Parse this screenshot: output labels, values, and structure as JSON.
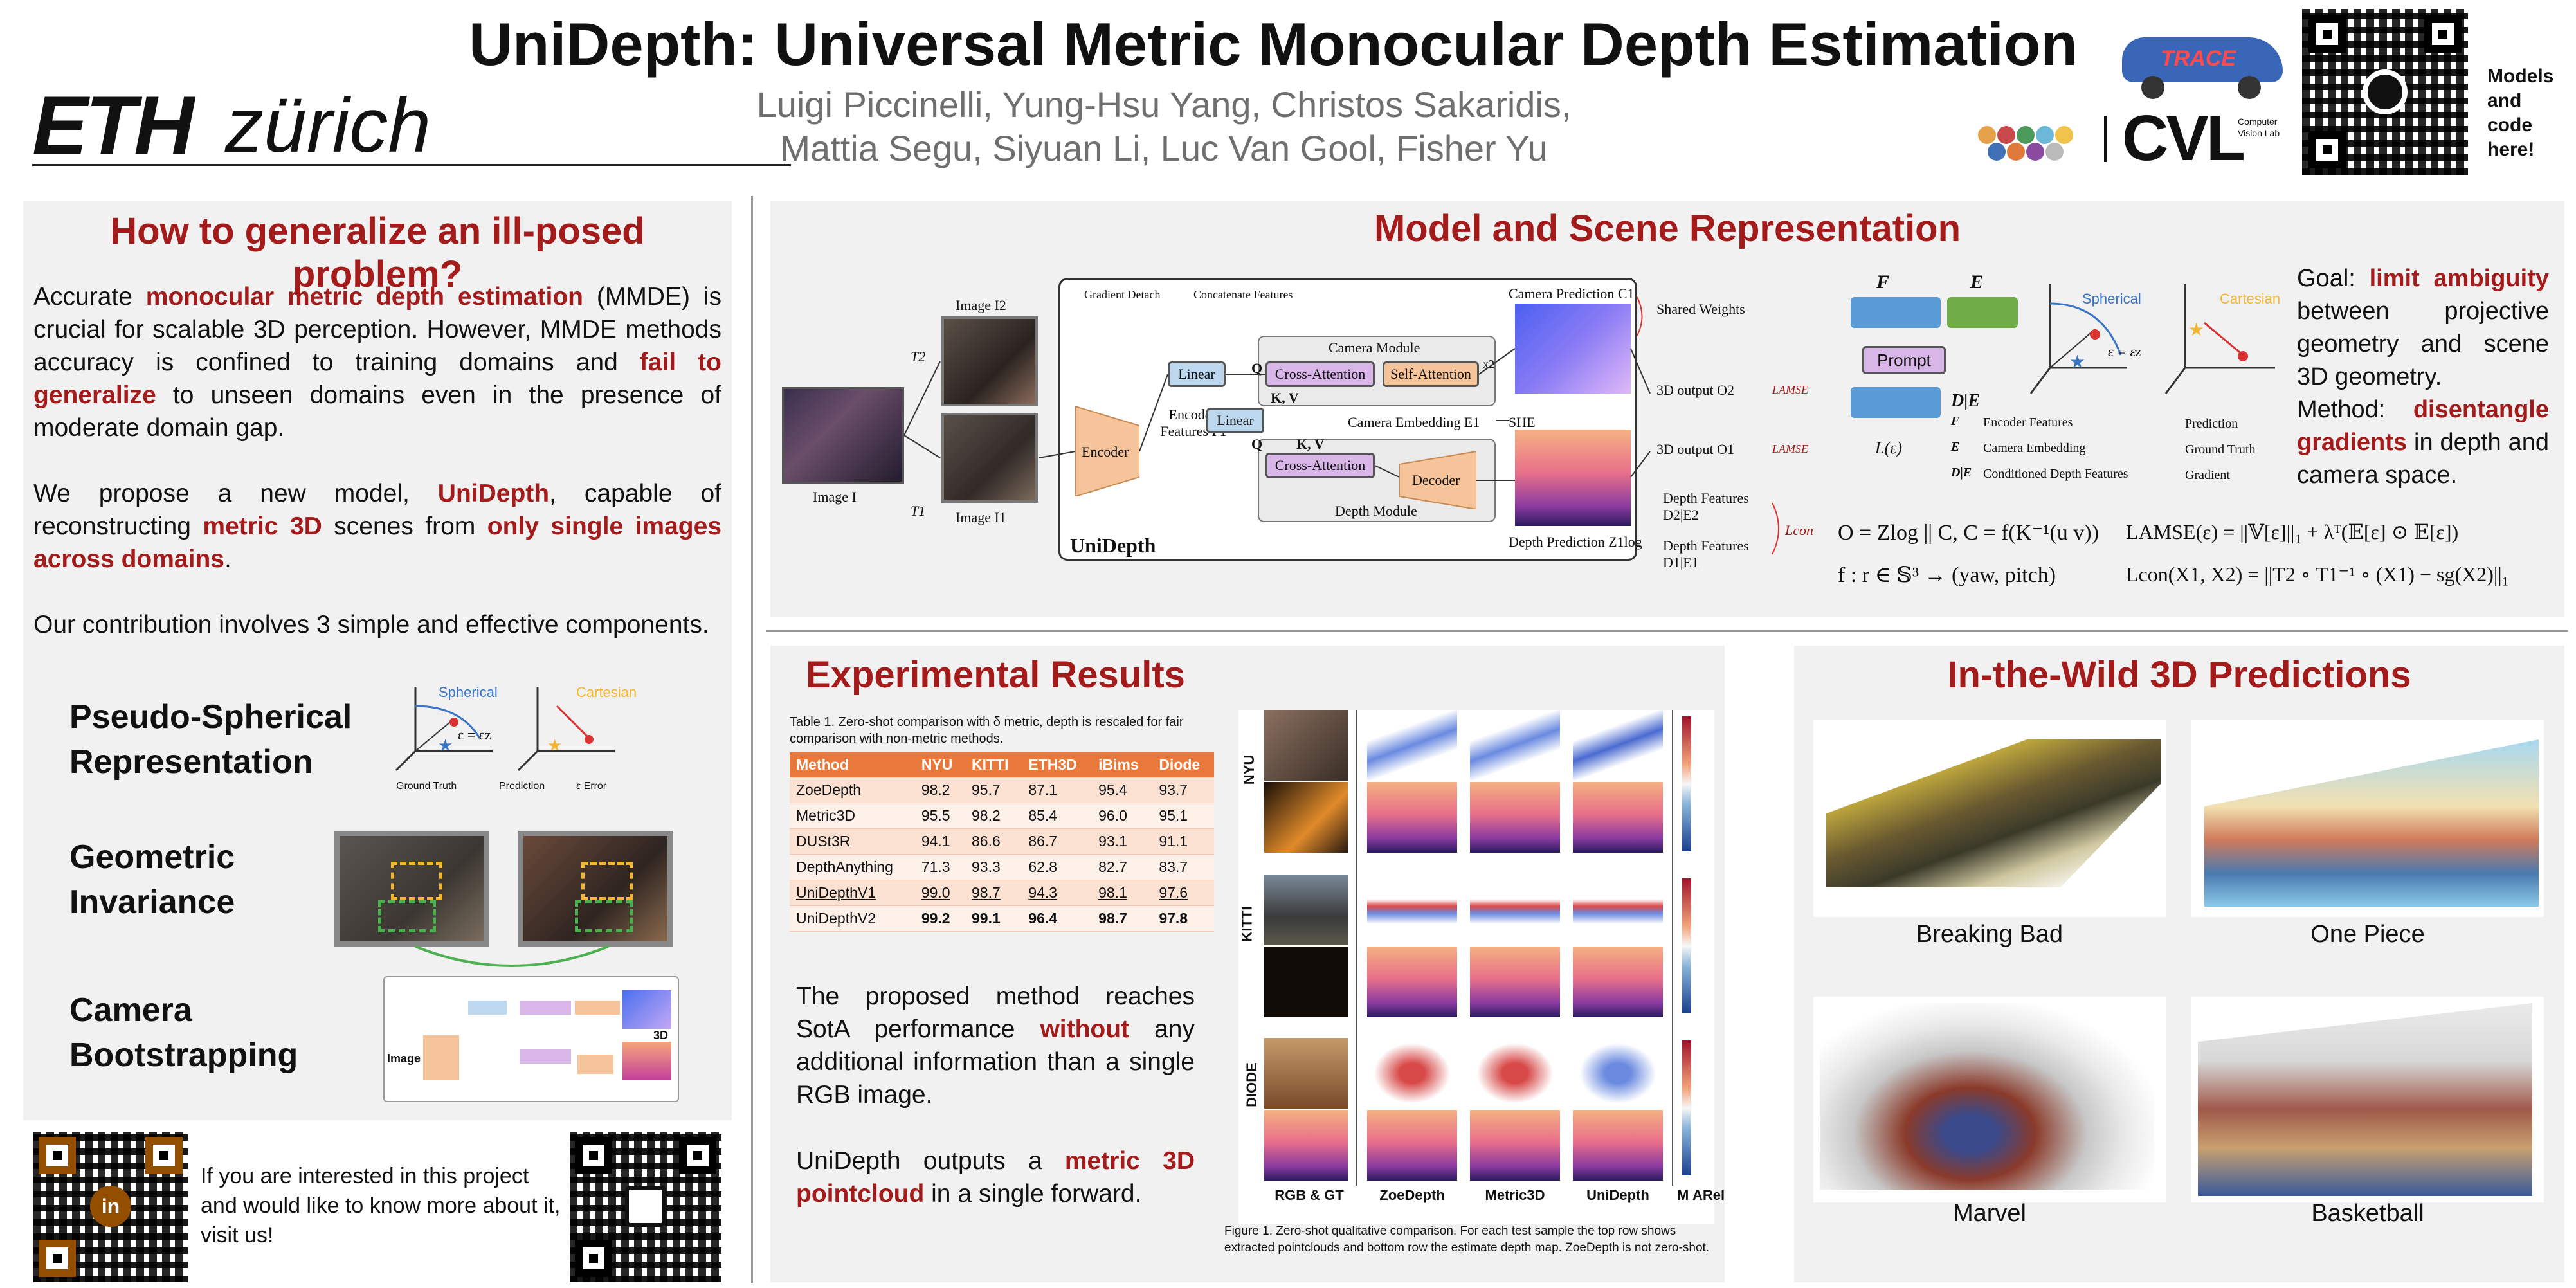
{
  "header": {
    "logo_left": "ETH zürich",
    "title": "UniDepth: Universal Metric Monocular Depth Estimation",
    "authors_line1": "Luigi Piccinelli, Yung-Hsu Yang, Christos Sakaridis,",
    "authors_line2": "Mattia Segu, Siyuan Li, Luc Van Gool, Fisher Yu",
    "trace_logo": "TRACE",
    "cvl_logo": "CVL",
    "cvl_sub": "Computer Vision Lab",
    "models_code": "Models and code here!"
  },
  "left": {
    "title": "How to generalize an ill-posed problem?",
    "p1": [
      "Accurate ",
      "monocular metric depth estimation",
      " (MMDE) is crucial for scalable 3D perception. However, MMDE methods accuracy is confined to training domains and ",
      "fail to generalize",
      " to unseen domains even in the presence of moderate domain gap."
    ],
    "p2": [
      "We propose a new model, ",
      "UniDepth",
      ", capable of reconstructing ",
      "metric 3D",
      " scenes from ",
      "only single images across domains",
      "."
    ],
    "p3": "Our contribution involves 3 simple and effective components.",
    "components": [
      "Pseudo-Spherical Representation",
      "Geometric Invariance",
      "Camera Bootstrapping"
    ],
    "sph_labels": {
      "spherical": "Spherical",
      "cartesian": "Cartesian",
      "eq": "ε = εz",
      "legend": [
        "Ground Truth",
        "Prediction",
        "ε  Error"
      ]
    },
    "footer_text": "If you are interested in this project and would like to know more about it, visit us!"
  },
  "model": {
    "title": "Model and Scene Representation",
    "diagram": {
      "legend_detach": "Gradient Detach",
      "legend_concat": "Concatenate Features",
      "image": "Image I",
      "image2": "Image I2",
      "image1": "Image I1",
      "t2": "T2",
      "t1": "T1",
      "encoder": "Encoder",
      "linear": "Linear",
      "q": "Q",
      "kv": "K, V",
      "encoded": "Encoded Features F1",
      "camera_module": "Camera Module",
      "cross_att": "Cross-Attention",
      "self_att": "Self-Attention",
      "x2": "x2",
      "camera_pred": "Camera Prediction C1",
      "shared": "Shared Weights",
      "cam_emb": "Camera Embedding E1",
      "she": "SHE",
      "decoder": "Decoder",
      "depth_module": "Depth Module",
      "depth_pred": "Depth Prediction Z1log",
      "unidepth": "UniDepth",
      "out2": "3D output O2",
      "out1": "3D output O1",
      "lamse": "LAMSE",
      "df2": "Depth Features D2|E2",
      "df1": "Depth Features D1|E1",
      "lcon": "Lcon"
    },
    "scene": {
      "F": "F",
      "E": "E",
      "prompt": "Prompt",
      "DE": "D|E",
      "L": "L(ε)",
      "legend": [
        "Encoder Features",
        "Camera Embedding",
        "Conditioned Depth Features"
      ],
      "legend_keys": [
        "F",
        "E",
        "D|E"
      ],
      "legend2": [
        "Prediction",
        "Ground Truth",
        "Gradient"
      ],
      "spherical": "Spherical",
      "cartesian": "Cartesian",
      "eq": "ε = εz"
    },
    "goal_lead": "Goal: ",
    "goal_red": "limit ambiguity",
    "goal_rest": " between projective geometry and scene 3D geometry.",
    "method_lead": "Method: ",
    "method_red": "disentangle gradients",
    "method_rest": " in depth and camera space.",
    "eq1": "O = Zlog || C, C = f(K⁻¹(u v))",
    "eq2": "f : r ∈ 𝕊³ → (yaw, pitch)",
    "eq3": "LAMSE(ε) = ||𝕍[ε]||₁ + λᵀ(𝔼[ε] ⊙ 𝔼[ε])",
    "eq4": "Lcon(X1, X2) = ||T2 ∘ T1⁻¹ ∘ (X1) − sg(X2)||₁"
  },
  "results": {
    "title": "Experimental Results",
    "table_caption": "Table 1. Zero-shot comparison with δ metric, depth is rescaled for fair comparison with non-metric methods.",
    "columns": [
      "Method",
      "NYU",
      "KITTI",
      "ETH3D",
      "iBims",
      "Diode"
    ],
    "rows": [
      [
        "ZoeDepth",
        "98.2",
        "95.7",
        "87.1",
        "95.4",
        "93.7"
      ],
      [
        "Metric3D",
        "95.5",
        "98.2",
        "85.4",
        "96.0",
        "95.1"
      ],
      [
        "DUSt3R",
        "94.1",
        "86.6",
        "86.7",
        "93.1",
        "91.1"
      ],
      [
        "DepthAnything",
        "71.3",
        "93.3",
        "62.8",
        "82.7",
        "83.7"
      ],
      [
        "UniDepthV1",
        "99.0",
        "98.7",
        "94.3",
        "98.1",
        "97.6"
      ],
      [
        "UniDepthV2",
        "99.2",
        "99.1",
        "96.4",
        "98.7",
        "97.8"
      ]
    ],
    "text1_a": "The proposed method reaches SotA performance ",
    "text1_red": "without",
    "text1_b": " any additional information than a single RGB image.",
    "text2_a": "UniDepth outputs a ",
    "text2_red": "metric 3D pointcloud",
    "text2_b": " in a single forward.",
    "row_labels": [
      "NYU",
      "KITTI",
      "DIODE"
    ],
    "col_labels": [
      "RGB & GT",
      "ZoeDepth",
      "Metric3D",
      "UniDepth",
      "M",
      "ARel"
    ],
    "figure_caption": "Figure 1. Zero-shot qualitative comparison. For each test sample the top row shows extracted pointclouds and bottom row the estimate depth map. ZoeDepth is not zero-shot."
  },
  "wild": {
    "title": "In-the-Wild 3D Predictions",
    "items": [
      "Breaking Bad",
      "One Piece",
      "Marvel",
      "Basketball"
    ]
  },
  "colors": {
    "accent_red": "#a31b1b",
    "panel_bg": "#f1f1f1",
    "table_orange": "#e9793b",
    "box_blue": "#5b9bd5",
    "box_purple": "#d9b6e8",
    "box_green": "#70ad47",
    "box_orange": "#f6c49a"
  }
}
